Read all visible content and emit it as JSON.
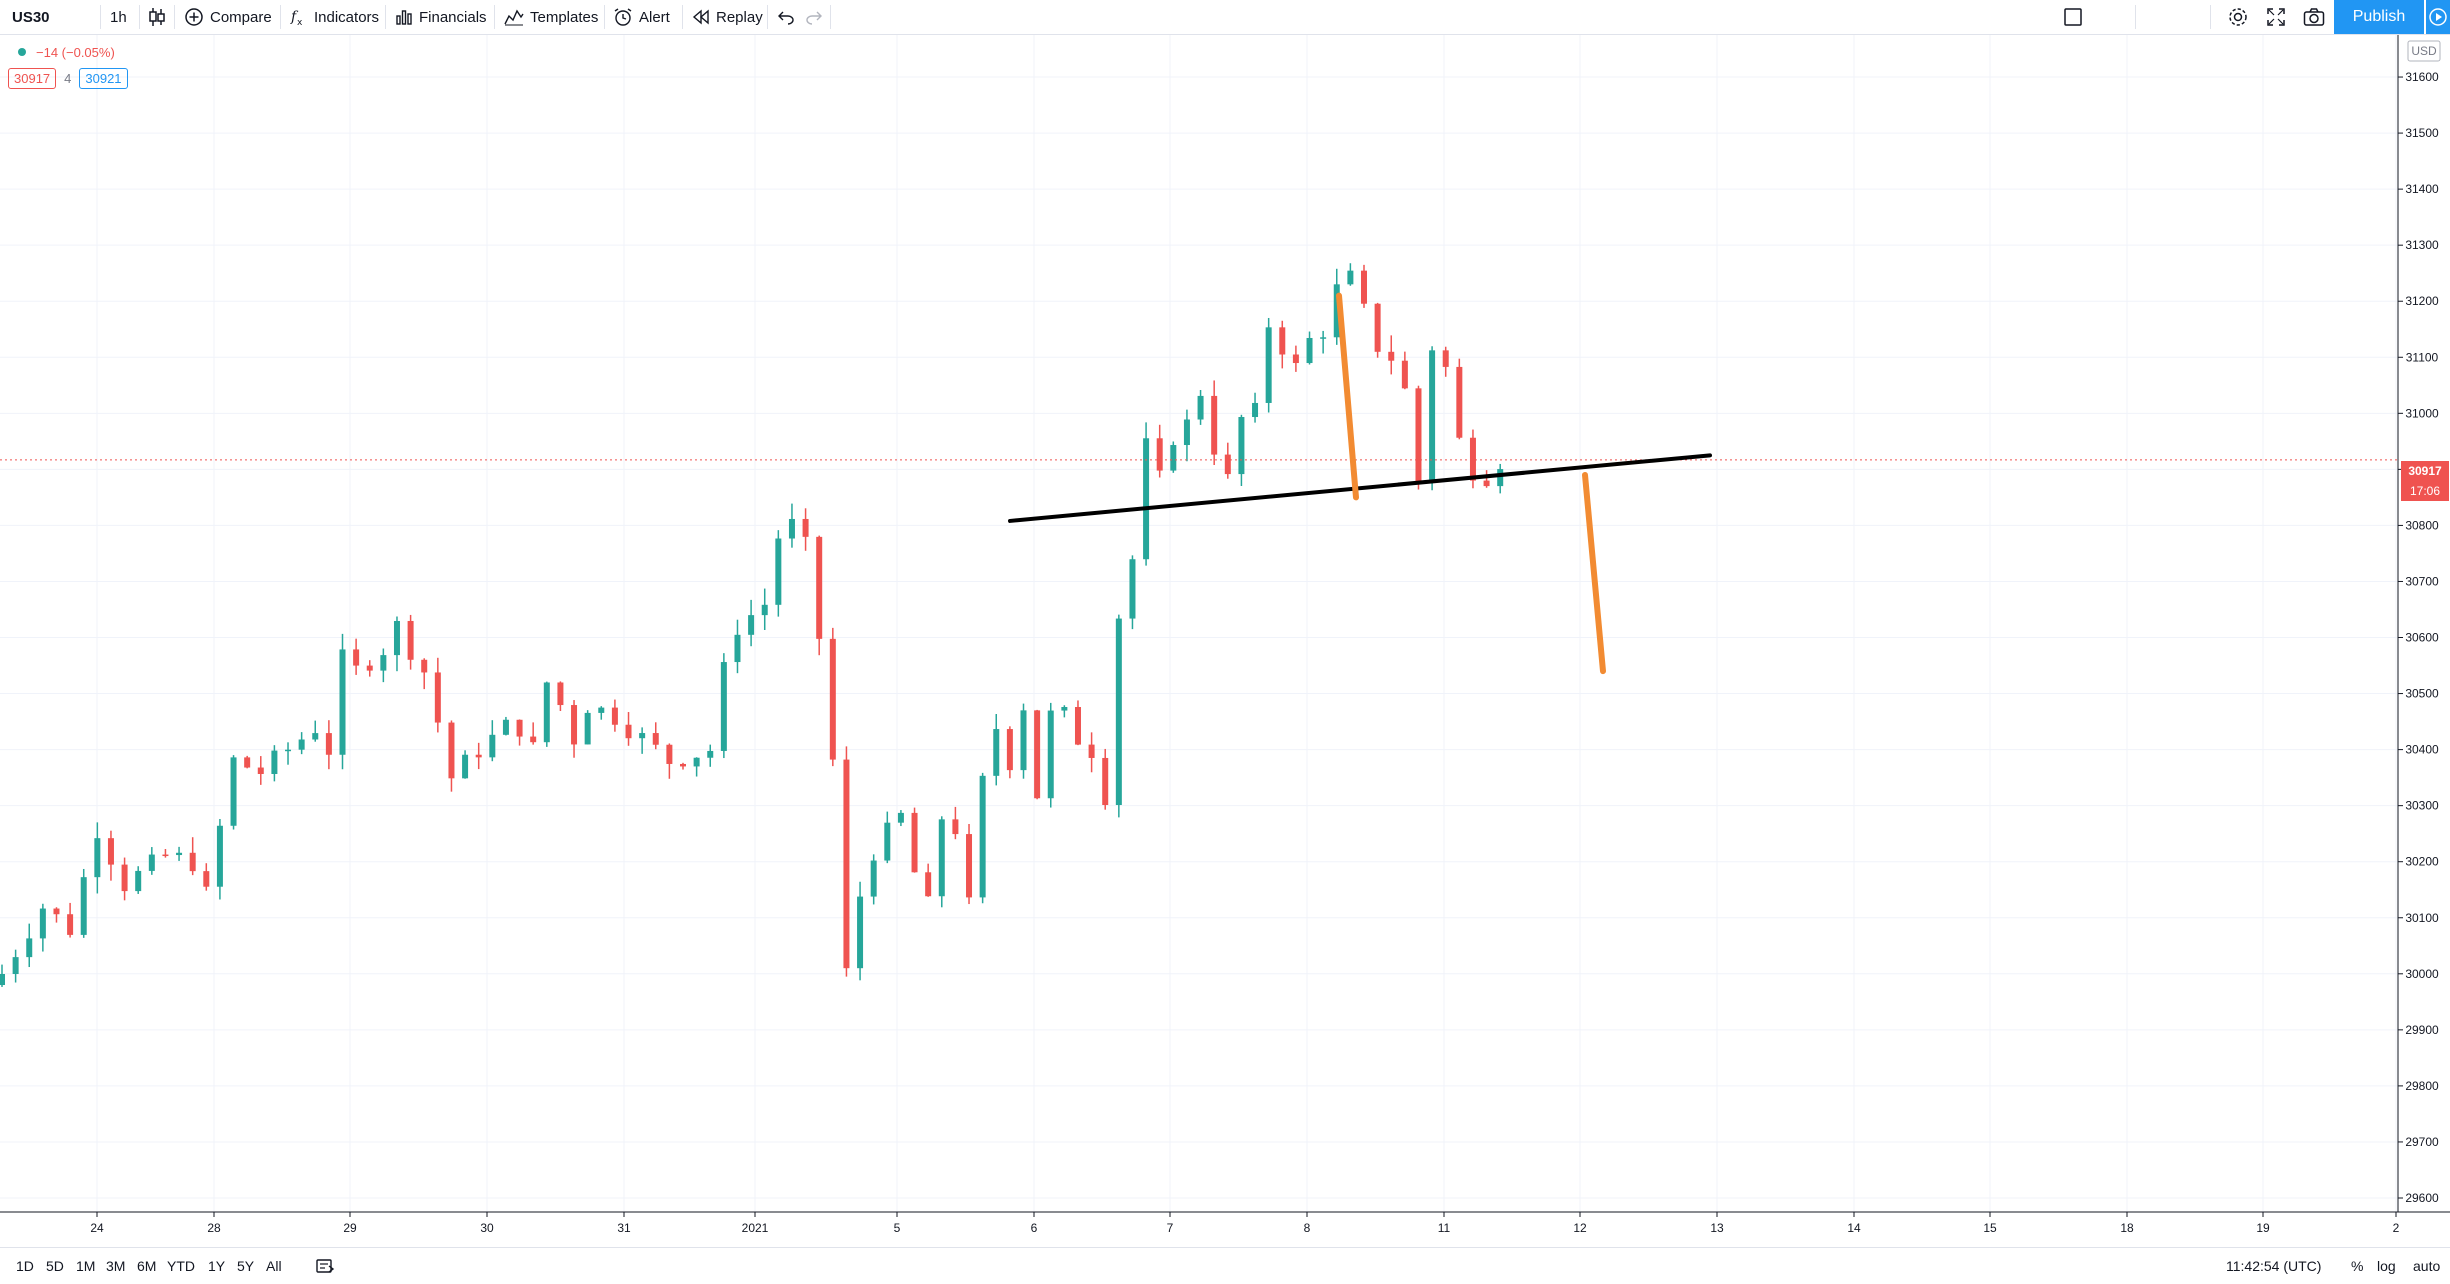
{
  "toolbar": {
    "symbol": "US30",
    "interval": "1h",
    "compare_label": "Compare",
    "indicators_label": "Indicators",
    "financials_label": "Financials",
    "templates_label": "Templates",
    "alert_label": "Alert",
    "replay_label": "Replay",
    "publish_label": "Publish"
  },
  "legend": {
    "change": "−14 (−0.05%)",
    "bid": "30917",
    "spread": "4",
    "ask": "30921"
  },
  "price_axis": {
    "currency": "USD",
    "current_price": "30917",
    "countdown": "17:06"
  },
  "bottom_bar": {
    "ranges": [
      "1D",
      "5D",
      "1M",
      "3M",
      "6M",
      "YTD",
      "1Y",
      "5Y",
      "All"
    ],
    "time": "11:42:54 (UTC)",
    "percent": "%",
    "log": "log",
    "auto": "auto"
  },
  "colors": {
    "up": "#26a69a",
    "down": "#ef5350",
    "accent": "#2196f3",
    "annotation_orange": "#f28b32",
    "neckline": "#000000"
  },
  "chart_data": {
    "type": "candlestick",
    "symbol": "US30",
    "interval": "1h",
    "y_range": [
      29575,
      31675
    ],
    "y_ticks": [
      31600,
      31500,
      31400,
      31300,
      31200,
      31100,
      31000,
      30900,
      30800,
      30700,
      30600,
      30500,
      30400,
      30300,
      30200,
      30100,
      30000,
      29900,
      29800,
      29700,
      29600
    ],
    "x_ticks": [
      "24",
      "28",
      "29",
      "30",
      "31",
      "2021",
      "5",
      "6",
      "7",
      "8",
      "11",
      "12",
      "13",
      "14",
      "15",
      "18",
      "19",
      "2"
    ],
    "grid": true,
    "current_price": 30917,
    "close_path": [
      [
        0,
        30000
      ],
      [
        3,
        30120
      ],
      [
        5,
        30080
      ],
      [
        7,
        30260
      ],
      [
        9,
        30160
      ],
      [
        12,
        30210
      ],
      [
        14,
        30200
      ],
      [
        15,
        30140
      ],
      [
        16,
        30260
      ],
      [
        17,
        30380
      ],
      [
        19,
        30360
      ],
      [
        21,
        30400
      ],
      [
        23,
        30440
      ],
      [
        24,
        30400
      ],
      [
        25,
        30560
      ],
      [
        26,
        30540
      ],
      [
        28,
        30580
      ],
      [
        29,
        30620
      ],
      [
        31,
        30540
      ],
      [
        32,
        30450
      ],
      [
        33,
        30350
      ],
      [
        35,
        30400
      ],
      [
        37,
        30440
      ],
      [
        38,
        30440
      ],
      [
        39,
        30400
      ],
      [
        40,
        30520
      ],
      [
        41,
        30480
      ],
      [
        42,
        30420
      ],
      [
        43,
        30480
      ],
      [
        45,
        30460
      ],
      [
        47,
        30420
      ],
      [
        49,
        30380
      ],
      [
        52,
        30400
      ],
      [
        53,
        30540
      ],
      [
        54,
        30620
      ],
      [
        56,
        30660
      ],
      [
        57,
        30780
      ],
      [
        58,
        30800
      ],
      [
        59,
        30760
      ],
      [
        60,
        30600
      ],
      [
        61,
        30380
      ],
      [
        62,
        30000
      ],
      [
        62.5,
        29960
      ],
      [
        63,
        30140
      ],
      [
        64,
        30220
      ],
      [
        66,
        30280
      ],
      [
        67,
        30180
      ],
      [
        68,
        30120
      ],
      [
        69,
        30280
      ],
      [
        70,
        30260
      ],
      [
        71,
        30120
      ],
      [
        72,
        30340
      ],
      [
        73,
        30440
      ],
      [
        74,
        30380
      ],
      [
        75,
        30480
      ],
      [
        76,
        30320
      ],
      [
        77,
        30460
      ],
      [
        78,
        30460
      ],
      [
        79,
        30420
      ],
      [
        80,
        30400
      ],
      [
        81,
        30320
      ],
      [
        82,
        30640
      ],
      [
        83,
        30740
      ],
      [
        84,
        30940
      ],
      [
        85,
        30880
      ],
      [
        86,
        30960
      ],
      [
        87,
        30980
      ],
      [
        88,
        31040
      ],
      [
        89,
        30940
      ],
      [
        90,
        30880
      ],
      [
        91,
        30990
      ],
      [
        92,
        31000
      ],
      [
        93,
        31160
      ],
      [
        94,
        31120
      ],
      [
        95,
        31080
      ],
      [
        96,
        31130
      ],
      [
        97,
        31150
      ],
      [
        98,
        31220
      ],
      [
        99,
        31240
      ],
      [
        100,
        31180
      ],
      [
        101,
        31120
      ],
      [
        102,
        31100
      ],
      [
        103,
        31040
      ],
      [
        104,
        30880
      ],
      [
        105,
        31120
      ],
      [
        106,
        31080
      ],
      [
        107,
        30950
      ],
      [
        108,
        30900
      ],
      [
        109,
        30890
      ],
      [
        110,
        30917
      ]
    ],
    "annotations": {
      "neckline": [
        [
          "2021-01-06",
          30808
        ],
        [
          "2021-01-13",
          30925
        ]
      ],
      "orange_lines": [
        [
          [
            31210,
            "2021-01-08"
          ],
          [
            30850,
            "2021-01-08"
          ]
        ],
        [
          [
            30890,
            "2021-01-12"
          ],
          [
            30540,
            "2021-01-12"
          ]
        ]
      ]
    }
  }
}
